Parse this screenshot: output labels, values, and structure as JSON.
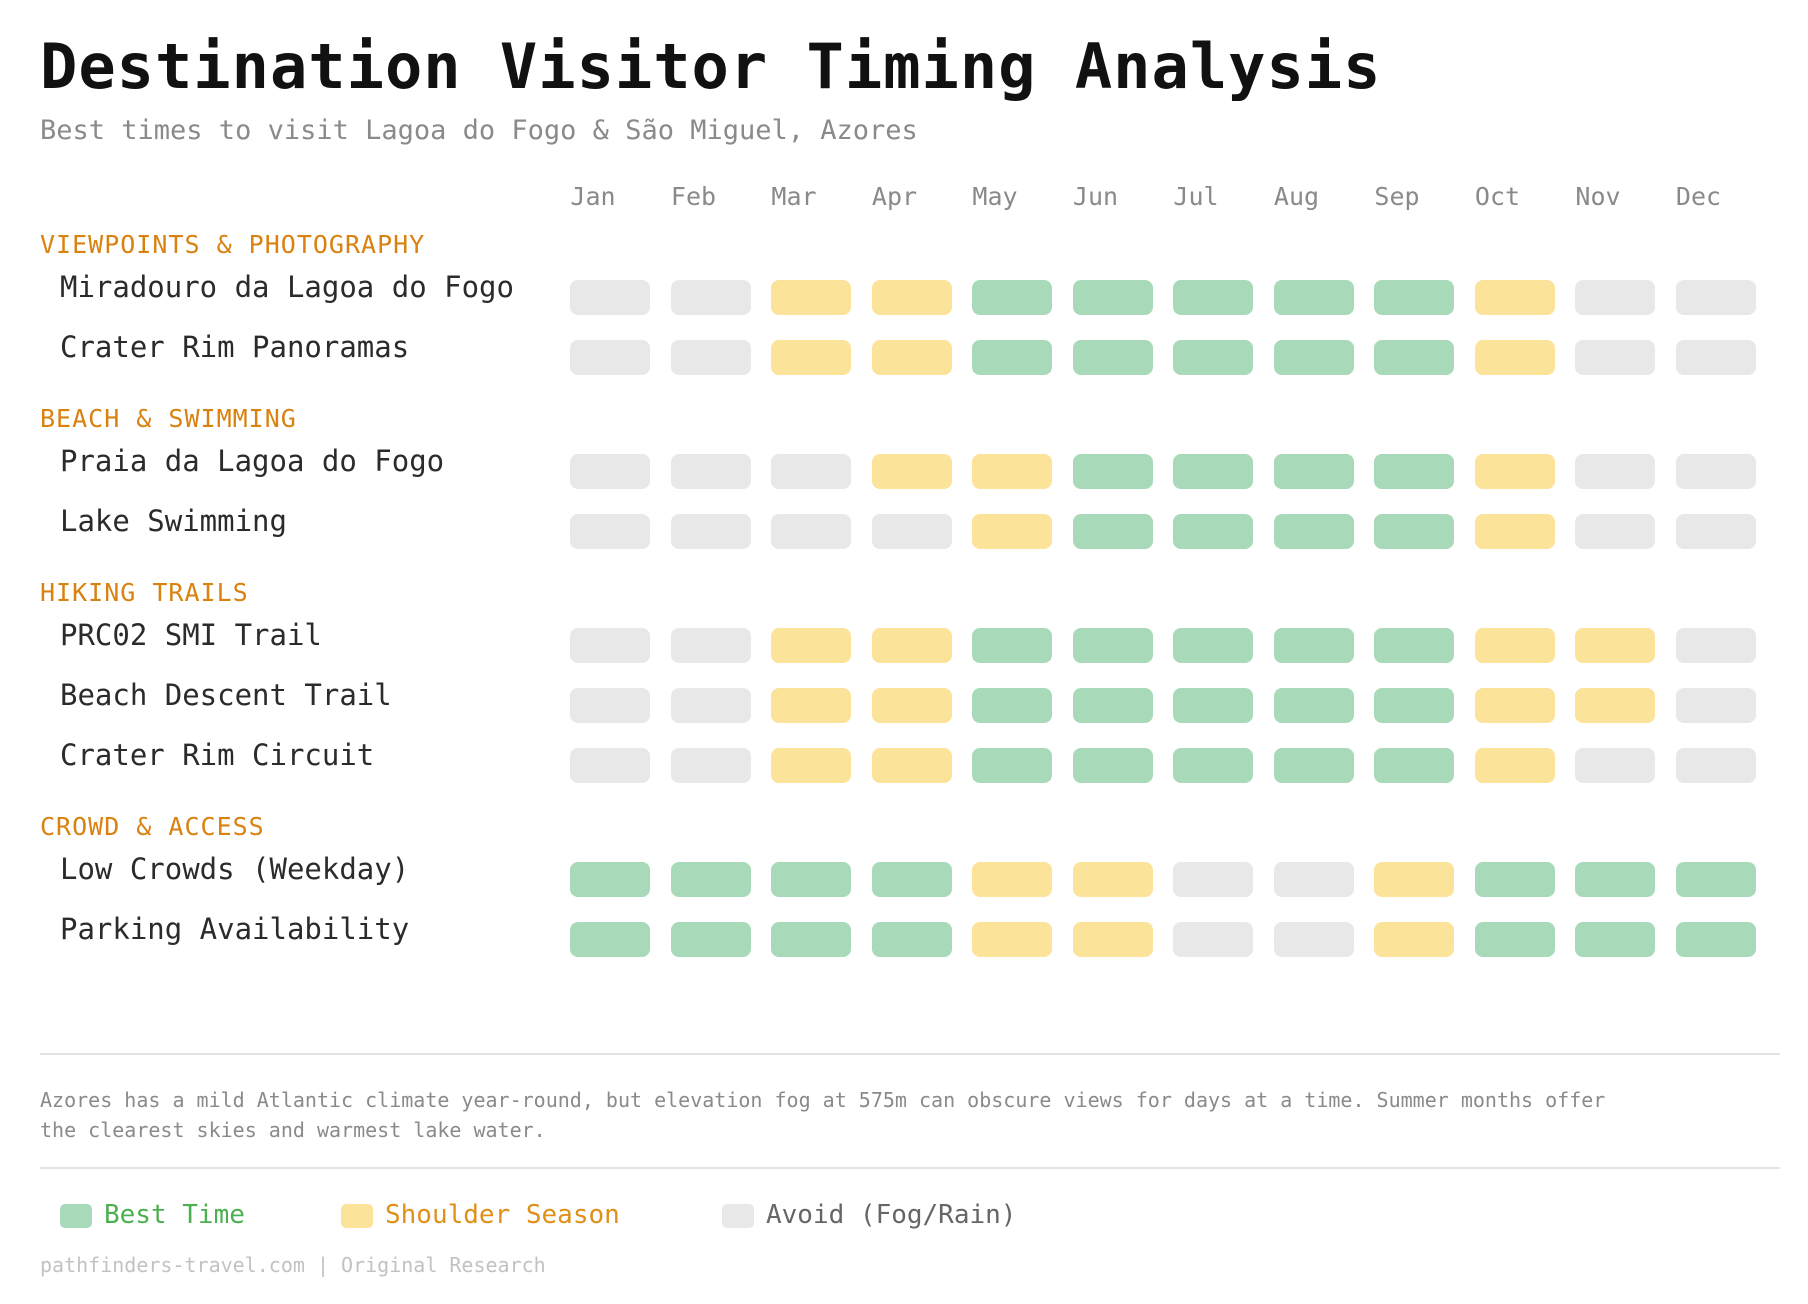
{
  "title": "Destination Visitor Timing Analysis",
  "subtitle": "Best times to visit Lagoa do Fogo & São Miguel, Azores",
  "note": "Azores has a mild Atlantic climate year-round, but elevation fog at 575m can obscure views for days at a time. Summer months offer the clearest skies and warmest lake water.",
  "footer": "pathfinders-travel.com | Original Research",
  "legend": {
    "best": "Best Time",
    "shoulder": "Shoulder Season",
    "avoid": "Avoid (Fog/Rain)"
  },
  "colors": {
    "best": "#a8d9b8",
    "shoulder": "#fbe39a",
    "avoid": "#e8e8e8",
    "category": "#d98210",
    "best_text": "#4caf50",
    "shoulder_text": "#e0901a",
    "avoid_text": "#666666"
  },
  "chart_data": {
    "type": "heatmap",
    "months": [
      "Jan",
      "Feb",
      "Mar",
      "Apr",
      "May",
      "Jun",
      "Jul",
      "Aug",
      "Sep",
      "Oct",
      "Nov",
      "Dec"
    ],
    "scale": {
      "2": "Best Time",
      "1": "Shoulder Season",
      "0": "Avoid (Fog/Rain)"
    },
    "groups": [
      {
        "category": "VIEWPOINTS & PHOTOGRAPHY",
        "rows": [
          {
            "label": "Miradouro da Lagoa do Fogo",
            "values": [
              0,
              0,
              1,
              1,
              2,
              2,
              2,
              2,
              2,
              1,
              0,
              0
            ]
          },
          {
            "label": "Crater Rim Panoramas",
            "values": [
              0,
              0,
              1,
              1,
              2,
              2,
              2,
              2,
              2,
              1,
              0,
              0
            ]
          }
        ]
      },
      {
        "category": "BEACH & SWIMMING",
        "rows": [
          {
            "label": "Praia da Lagoa do Fogo",
            "values": [
              0,
              0,
              0,
              1,
              1,
              2,
              2,
              2,
              2,
              1,
              0,
              0
            ]
          },
          {
            "label": "Lake Swimming",
            "values": [
              0,
              0,
              0,
              0,
              1,
              2,
              2,
              2,
              2,
              1,
              0,
              0
            ]
          }
        ]
      },
      {
        "category": "HIKING TRAILS",
        "rows": [
          {
            "label": "PRC02 SMI Trail",
            "values": [
              0,
              0,
              1,
              1,
              2,
              2,
              2,
              2,
              2,
              1,
              1,
              0
            ]
          },
          {
            "label": "Beach Descent Trail",
            "values": [
              0,
              0,
              1,
              1,
              2,
              2,
              2,
              2,
              2,
              1,
              1,
              0
            ]
          },
          {
            "label": "Crater Rim Circuit",
            "values": [
              0,
              0,
              1,
              1,
              2,
              2,
              2,
              2,
              2,
              1,
              0,
              0
            ]
          }
        ]
      },
      {
        "category": "CROWD & ACCESS",
        "rows": [
          {
            "label": "Low Crowds (Weekday)",
            "values": [
              2,
              2,
              2,
              2,
              1,
              1,
              0,
              0,
              1,
              2,
              2,
              2
            ]
          },
          {
            "label": "Parking Availability",
            "values": [
              2,
              2,
              2,
              2,
              1,
              1,
              0,
              0,
              1,
              2,
              2,
              2
            ]
          }
        ]
      }
    ]
  }
}
